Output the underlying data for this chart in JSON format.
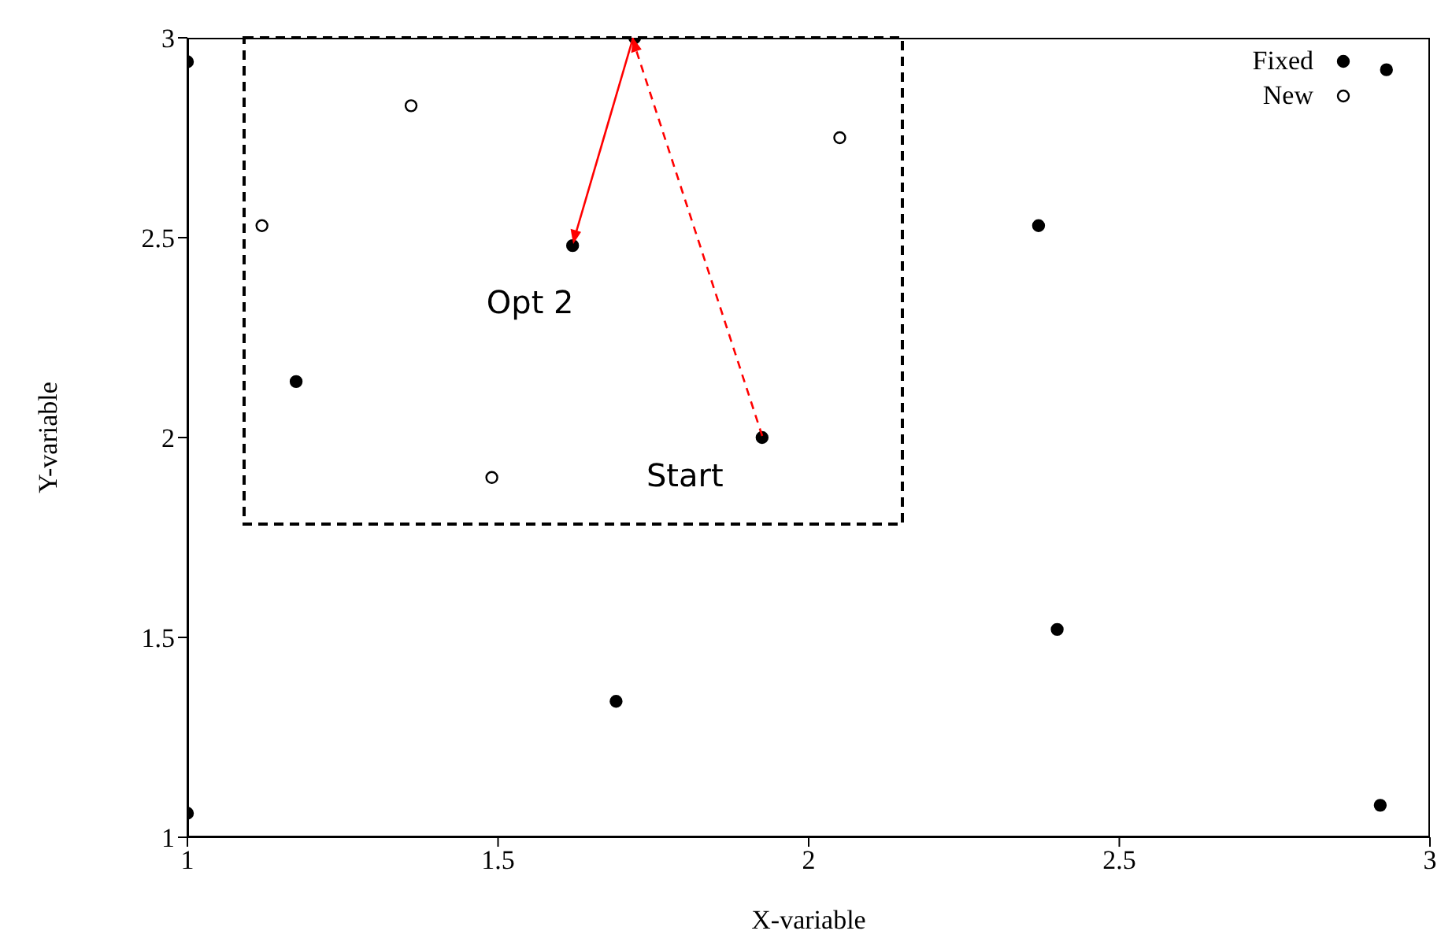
{
  "chart_data": {
    "type": "scatter",
    "xlabel": "X-variable",
    "ylabel": "Y-variable",
    "xlim": [
      1,
      3
    ],
    "xticks": [
      1,
      1.5,
      2,
      2.5,
      3
    ],
    "ylim": [
      1,
      3
    ],
    "yticks": [
      1,
      1.5,
      2,
      2.5,
      3
    ],
    "grid": false,
    "legend": "top right",
    "marker": "circle",
    "series": [
      {
        "name": "Fixed",
        "color": "#000000",
        "x": [
          1.0,
          1.0,
          1.72,
          1.62,
          1.175,
          1.925,
          2.37,
          2.4,
          1.69,
          2.92,
          2.93
        ],
        "values": [
          2.94,
          1.06,
          3.0,
          2.48,
          2.14,
          2.0,
          2.53,
          1.52,
          1.34,
          1.08,
          2.92
        ]
      },
      {
        "name": "New",
        "color": "#000000",
        "x": [
          1.12,
          1.36,
          2.05,
          1.49
        ],
        "values": [
          2.53,
          2.83,
          2.75,
          1.9
        ]
      }
    ],
    "annotations": [
      {
        "text": "Opt 2",
        "x": 1.62,
        "y": 2.48
      },
      {
        "text": "Start",
        "x": 1.925,
        "y": 2.0
      }
    ]
  }
}
